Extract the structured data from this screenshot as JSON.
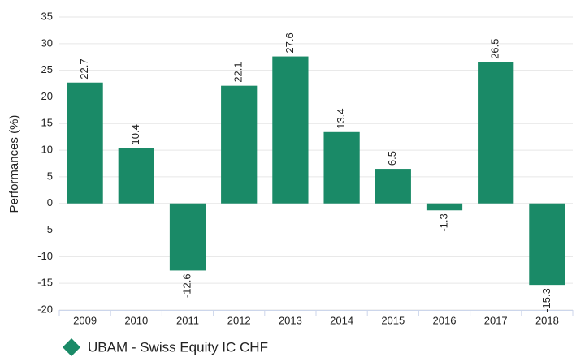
{
  "chart_data": {
    "type": "bar",
    "y_label": "Performances (%)",
    "categories": [
      "2009",
      "2010",
      "2011",
      "2012",
      "2013",
      "2014",
      "2015",
      "2016",
      "2017",
      "2018"
    ],
    "series": [
      {
        "name": "UBAM - Swiss Equity IC CHF",
        "color": "#1a8a67",
        "values": [
          22.7,
          10.4,
          -12.6,
          22.1,
          27.6,
          13.4,
          6.5,
          -1.3,
          26.5,
          -15.3
        ]
      }
    ],
    "ylim": [
      -20,
      35
    ],
    "yticks": [
      -20,
      -15,
      -10,
      -5,
      0,
      5,
      10,
      15,
      20,
      25,
      30,
      35
    ],
    "grid": true,
    "legend": "bottom-left",
    "data_labels": true
  }
}
